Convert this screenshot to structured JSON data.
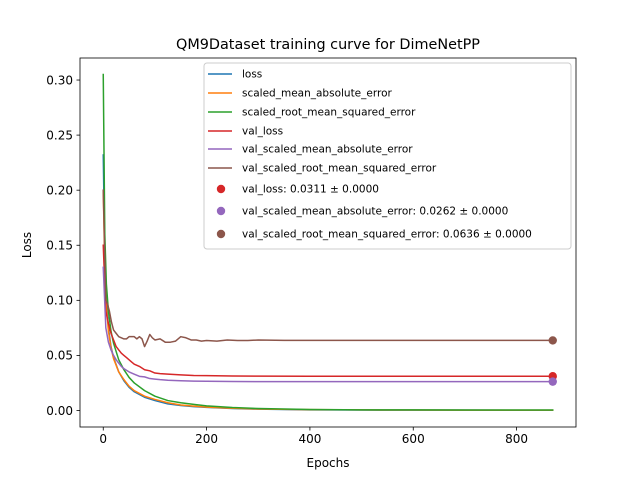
{
  "chart_data": {
    "type": "line",
    "title": "QM9Dataset training curve for DimeNetPP",
    "xlabel": "Epochs",
    "ylabel": "Loss",
    "xlim": [
      -45,
      915
    ],
    "ylim": [
      -0.015,
      0.32
    ],
    "xticks": [
      0,
      200,
      400,
      600,
      800
    ],
    "xtick_labels": [
      "0",
      "200",
      "400",
      "600",
      "800"
    ],
    "yticks": [
      0.0,
      0.05,
      0.1,
      0.15,
      0.2,
      0.25,
      0.3
    ],
    "ytick_labels": [
      "0.00",
      "0.05",
      "0.10",
      "0.15",
      "0.20",
      "0.25",
      "0.30"
    ],
    "grid": false,
    "legend_position": "upper-right",
    "series": [
      {
        "name": "loss",
        "color": "#1f77b4",
        "x": [
          0,
          3,
          6,
          10,
          15,
          20,
          30,
          40,
          50,
          60,
          80,
          100,
          125,
          150,
          175,
          200,
          250,
          300,
          400,
          500,
          600,
          700,
          800,
          870
        ],
        "y": [
          0.232,
          0.14,
          0.1,
          0.075,
          0.058,
          0.048,
          0.035,
          0.027,
          0.021,
          0.017,
          0.012,
          0.009,
          0.006,
          0.0045,
          0.0035,
          0.0028,
          0.0018,
          0.0012,
          0.0006,
          0.0004,
          0.0003,
          0.0003,
          0.0002,
          0.0002
        ]
      },
      {
        "name": "scaled_mean_absolute_error",
        "color": "#ff7f0e",
        "x": [
          0,
          3,
          6,
          10,
          15,
          20,
          30,
          40,
          50,
          60,
          80,
          100,
          125,
          150,
          175,
          200,
          250,
          300,
          400,
          500,
          600,
          700,
          800,
          870
        ],
        "y": [
          0.2,
          0.13,
          0.095,
          0.072,
          0.057,
          0.047,
          0.035,
          0.028,
          0.022,
          0.018,
          0.013,
          0.01,
          0.007,
          0.005,
          0.004,
          0.003,
          0.002,
          0.0014,
          0.0008,
          0.0005,
          0.0004,
          0.0003,
          0.0003,
          0.0003
        ]
      },
      {
        "name": "scaled_root_mean_squared_error",
        "color": "#2ca02c",
        "x": [
          0,
          3,
          6,
          10,
          15,
          20,
          30,
          40,
          50,
          60,
          80,
          100,
          125,
          150,
          175,
          200,
          250,
          300,
          400,
          500,
          600,
          700,
          800,
          870
        ],
        "y": [
          0.305,
          0.16,
          0.115,
          0.09,
          0.072,
          0.061,
          0.046,
          0.037,
          0.03,
          0.025,
          0.018,
          0.013,
          0.009,
          0.007,
          0.0055,
          0.0042,
          0.0027,
          0.0018,
          0.0009,
          0.0006,
          0.0005,
          0.0004,
          0.0004,
          0.0004
        ]
      },
      {
        "name": "val_loss",
        "color": "#d62728",
        "x": [
          0,
          5,
          10,
          15,
          20,
          25,
          30,
          35,
          40,
          45,
          50,
          55,
          60,
          70,
          80,
          90,
          100,
          110,
          125,
          150,
          175,
          200,
          250,
          300,
          400,
          500,
          600,
          700,
          800,
          870
        ],
        "y": [
          0.15,
          0.09,
          0.079,
          0.07,
          0.064,
          0.058,
          0.055,
          0.052,
          0.05,
          0.048,
          0.046,
          0.044,
          0.042,
          0.04,
          0.037,
          0.036,
          0.034,
          0.0335,
          0.033,
          0.0323,
          0.0318,
          0.0316,
          0.0313,
          0.0312,
          0.0311,
          0.0311,
          0.0311,
          0.0311,
          0.0311,
          0.0311
        ]
      },
      {
        "name": "val_scaled_mean_absolute_error",
        "color": "#9467bd",
        "x": [
          0,
          5,
          10,
          15,
          20,
          25,
          30,
          35,
          40,
          50,
          60,
          70,
          80,
          90,
          100,
          110,
          125,
          150,
          175,
          200,
          250,
          300,
          400,
          500,
          600,
          700,
          800,
          870
        ],
        "y": [
          0.13,
          0.075,
          0.062,
          0.055,
          0.05,
          0.046,
          0.043,
          0.04,
          0.038,
          0.035,
          0.033,
          0.031,
          0.0305,
          0.029,
          0.0285,
          0.028,
          0.0275,
          0.027,
          0.0267,
          0.0265,
          0.0263,
          0.0262,
          0.0262,
          0.0262,
          0.0262,
          0.0262,
          0.0262,
          0.0262
        ]
      },
      {
        "name": "val_scaled_root_mean_squared_error",
        "color": "#8c564b",
        "x": [
          0,
          5,
          8,
          12,
          16,
          20,
          25,
          30,
          35,
          40,
          45,
          50,
          55,
          60,
          65,
          70,
          75,
          80,
          85,
          90,
          95,
          100,
          110,
          120,
          130,
          140,
          150,
          160,
          170,
          180,
          190,
          200,
          220,
          240,
          260,
          280,
          300,
          350,
          400,
          500,
          600,
          700,
          800,
          870
        ],
        "y": [
          0.2,
          0.1,
          0.097,
          0.09,
          0.08,
          0.073,
          0.07,
          0.067,
          0.066,
          0.065,
          0.065,
          0.067,
          0.067,
          0.067,
          0.065,
          0.067,
          0.065,
          0.058,
          0.063,
          0.069,
          0.066,
          0.064,
          0.065,
          0.062,
          0.062,
          0.063,
          0.067,
          0.066,
          0.064,
          0.064,
          0.063,
          0.0635,
          0.063,
          0.064,
          0.0635,
          0.0635,
          0.064,
          0.0636,
          0.0636,
          0.0636,
          0.0636,
          0.0636,
          0.0636,
          0.0636
        ]
      }
    ],
    "final_points": [
      {
        "name": "val_loss: 0.0311 ± 0.0000",
        "color": "#d62728",
        "x": 870,
        "y": 0.0311
      },
      {
        "name": "val_scaled_mean_absolute_error: 0.0262 ± 0.0000",
        "color": "#9467bd",
        "x": 870,
        "y": 0.0262
      },
      {
        "name": "val_scaled_root_mean_squared_error: 0.0636 ± 0.0000",
        "color": "#8c564b",
        "x": 870,
        "y": 0.0636
      }
    ]
  }
}
